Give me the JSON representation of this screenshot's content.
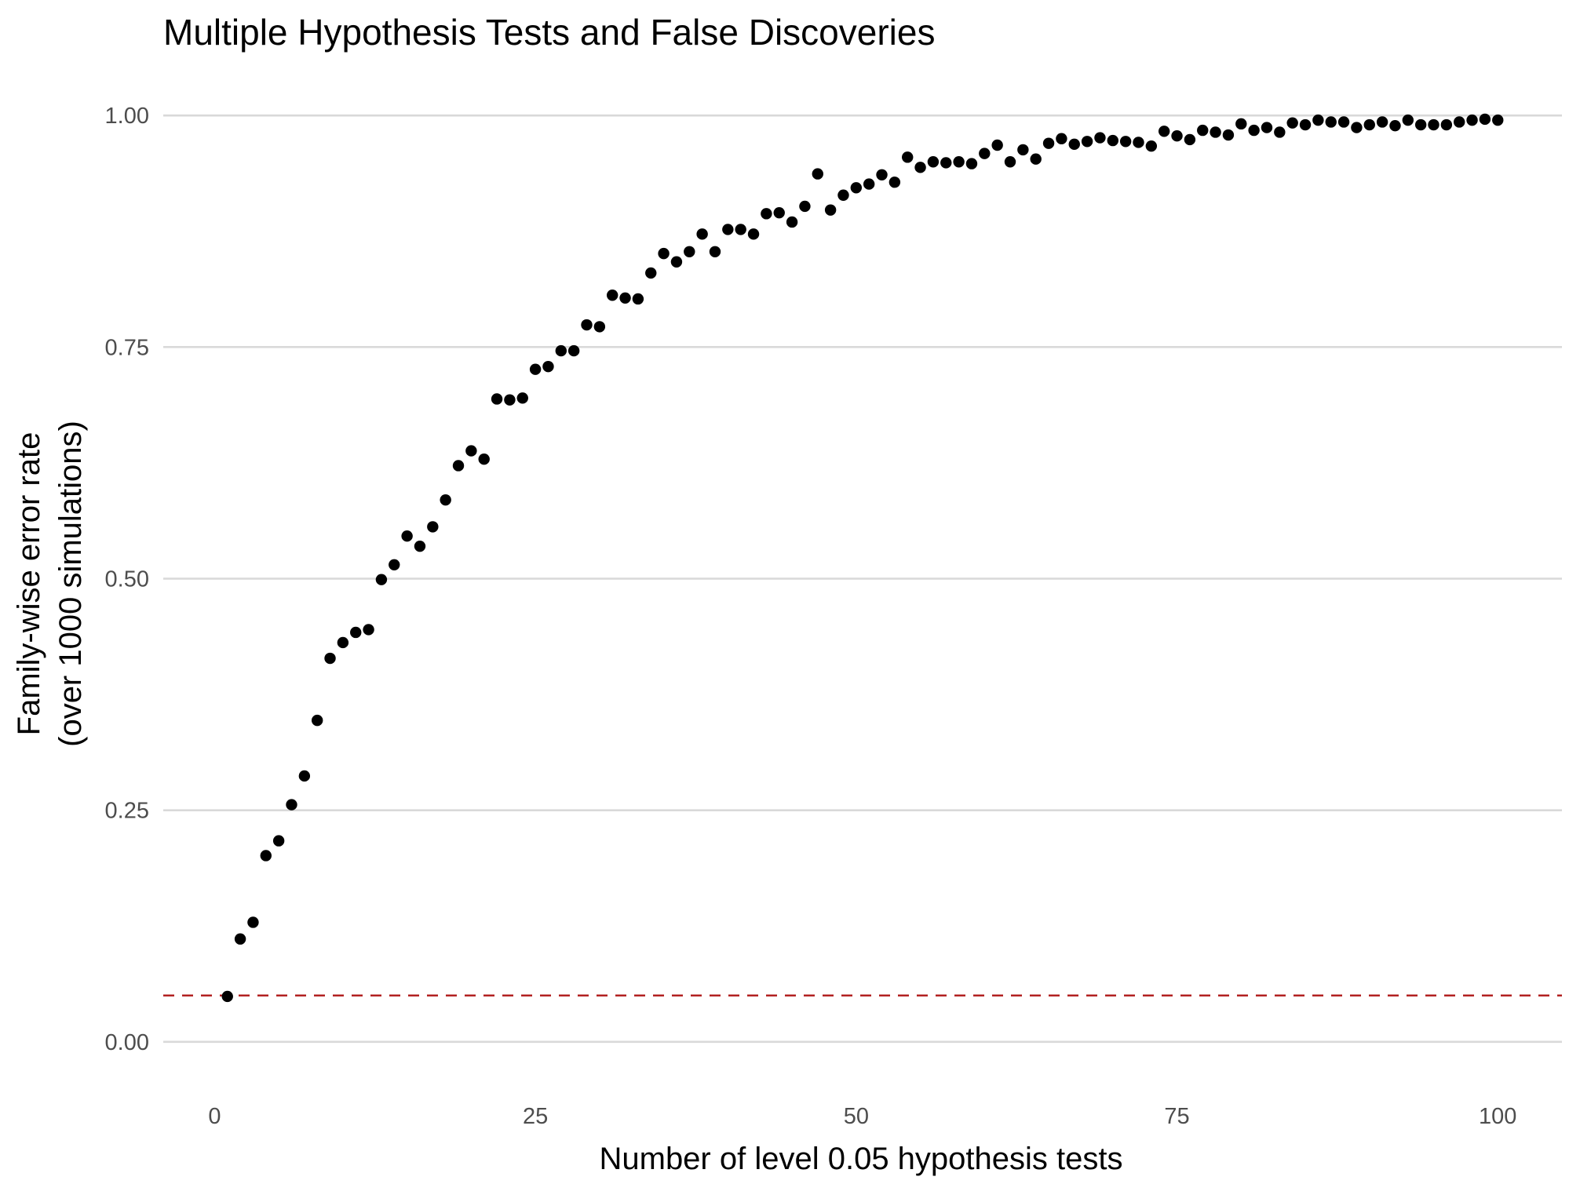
{
  "chart_data": {
    "type": "scatter",
    "title": "Multiple Hypothesis Tests and False Discoveries",
    "xlabel": "Number of level 0.05 hypothesis tests",
    "ylabel_lines": [
      "Family-wise error rate",
      "(over 1000 simulations)"
    ],
    "xlim": [
      -4,
      105
    ],
    "ylim": [
      -0.04,
      1.04
    ],
    "x_ticks": [
      0,
      25,
      50,
      75,
      100
    ],
    "x_tick_labels": [
      "0",
      "25",
      "50",
      "75",
      "100"
    ],
    "y_ticks": [
      0,
      0.25,
      0.5,
      0.75,
      1
    ],
    "y_tick_labels": [
      "0.00",
      "0.25",
      "0.50",
      "0.75",
      "1.00"
    ],
    "grid": "horizontal major lines",
    "legend": "none",
    "reference_line": {
      "y": 0.05,
      "style": "dashed",
      "color": "#b22222"
    },
    "point_color": "#000000",
    "x": [
      1,
      2,
      3,
      4,
      5,
      6,
      7,
      8,
      9,
      10,
      11,
      12,
      13,
      14,
      15,
      16,
      17,
      18,
      19,
      20,
      21,
      22,
      23,
      24,
      25,
      26,
      27,
      28,
      29,
      30,
      31,
      32,
      33,
      34,
      35,
      36,
      37,
      38,
      39,
      40,
      41,
      42,
      43,
      44,
      45,
      46,
      47,
      48,
      49,
      50,
      51,
      52,
      53,
      54,
      55,
      56,
      57,
      58,
      59,
      60,
      61,
      62,
      63,
      64,
      65,
      66,
      67,
      68,
      69,
      70,
      71,
      72,
      73,
      74,
      75,
      76,
      77,
      78,
      79,
      80,
      81,
      82,
      83,
      84,
      85,
      86,
      87,
      88,
      89,
      90,
      91,
      92,
      93,
      94,
      95,
      96,
      97,
      98,
      99,
      100
    ],
    "y": [
      0.049,
      0.111,
      0.129,
      0.201,
      0.217,
      0.256,
      0.287,
      0.347,
      0.414,
      0.431,
      0.442,
      0.445,
      0.499,
      0.515,
      0.546,
      0.535,
      0.556,
      0.585,
      0.622,
      0.638,
      0.629,
      0.694,
      0.693,
      0.695,
      0.726,
      0.729,
      0.746,
      0.746,
      0.774,
      0.772,
      0.806,
      0.803,
      0.802,
      0.83,
      0.851,
      0.842,
      0.853,
      0.872,
      0.853,
      0.877,
      0.877,
      0.872,
      0.894,
      0.895,
      0.885,
      0.902,
      0.937,
      0.898,
      0.914,
      0.922,
      0.926,
      0.936,
      0.928,
      0.955,
      0.944,
      0.95,
      0.949,
      0.95,
      0.948,
      0.959,
      0.968,
      0.95,
      0.963,
      0.953,
      0.97,
      0.975,
      0.969,
      0.972,
      0.976,
      0.973,
      0.972,
      0.971,
      0.967,
      0.983,
      0.978,
      0.974,
      0.984,
      0.982,
      0.979,
      0.991,
      0.984,
      0.987,
      0.982,
      0.992,
      0.99,
      0.995,
      0.993,
      0.993,
      0.987,
      0.99,
      0.993,
      0.989,
      0.995,
      0.99,
      0.99,
      0.99,
      0.993,
      0.995,
      0.996,
      0.995
    ]
  }
}
